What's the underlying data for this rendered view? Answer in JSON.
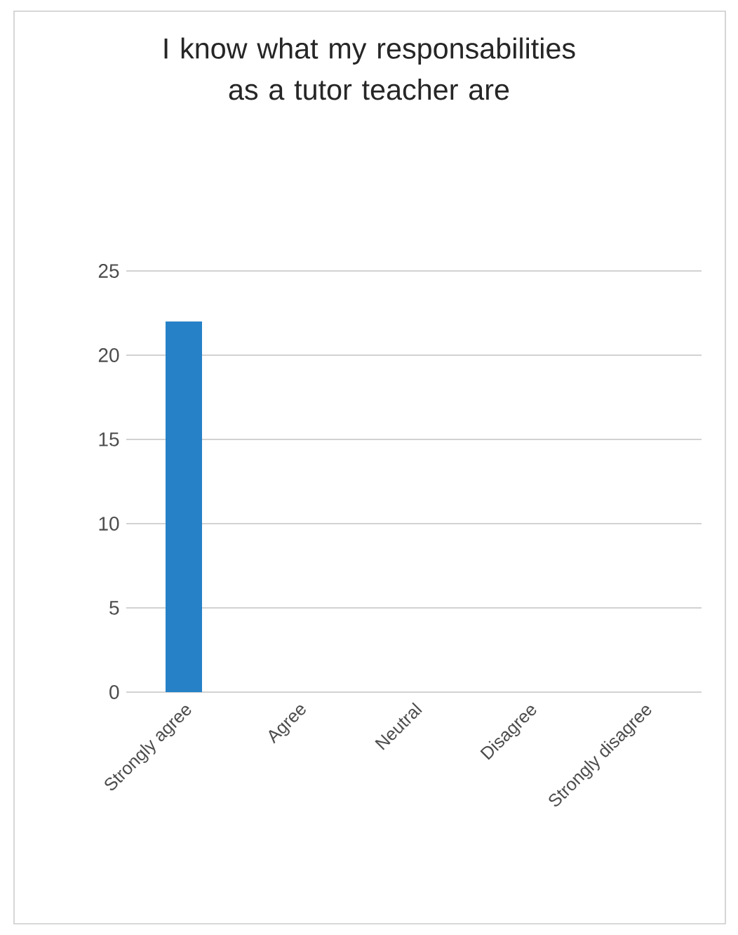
{
  "chart_data": {
    "type": "bar",
    "title": "I know what my responsabilities as a tutor teacher are",
    "categories": [
      "Strongly agree",
      "Agree",
      "Neutral",
      "Disagree",
      "Strongly disagree"
    ],
    "values": [
      22,
      0,
      0,
      0,
      0
    ],
    "color": "#2681c7",
    "ylim": [
      0,
      25
    ],
    "yticks": [
      0,
      5,
      10,
      15,
      20,
      25
    ],
    "grid": "y"
  }
}
